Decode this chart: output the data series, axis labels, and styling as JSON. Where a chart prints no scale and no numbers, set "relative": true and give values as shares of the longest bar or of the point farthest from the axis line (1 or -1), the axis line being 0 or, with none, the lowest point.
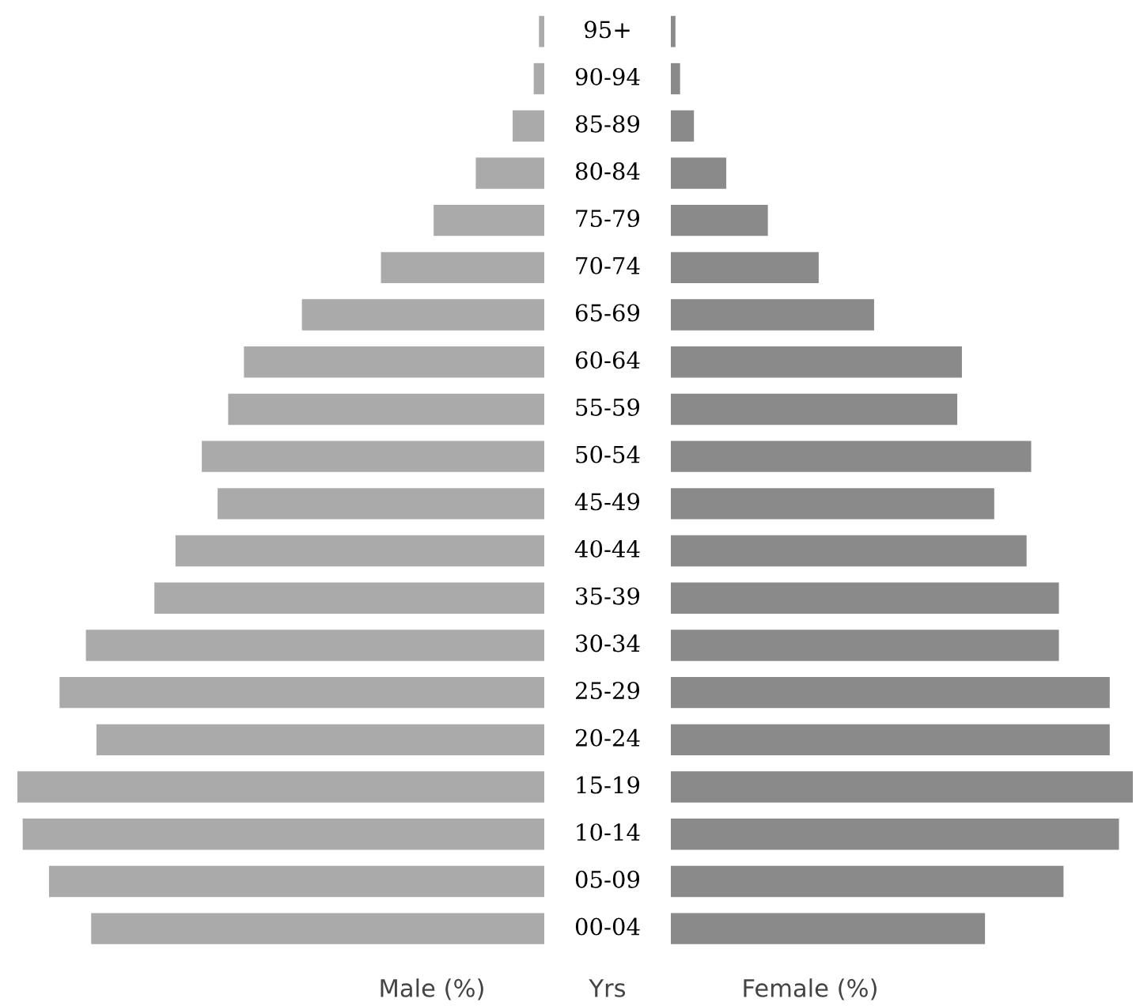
{
  "chart_data": [
    {
      "type": "bar",
      "orientation": "horizontal",
      "relative": true,
      "categories": [
        "95+",
        "90-94",
        "85-89",
        "80-84",
        "75-79",
        "70-74",
        "65-69",
        "60-64",
        "55-59",
        "50-54",
        "45-49",
        "40-44",
        "35-39",
        "30-34",
        "25-29",
        "20-24",
        "15-19",
        "10-14",
        "05-09",
        "00-04"
      ],
      "series": [
        {
          "color": "#aaaaaa",
          "values": [
            -0.01,
            -0.02,
            -0.06,
            -0.13,
            -0.21,
            -0.31,
            -0.46,
            -0.57,
            -0.6,
            -0.65,
            -0.62,
            -0.7,
            -0.74,
            -0.87,
            -0.92,
            -0.85,
            -1,
            -0.99,
            -0.94,
            -0.86
          ]
        }
      ],
      "xlabel": "Male (%)",
      "annotations": [
        "Yrs"
      ]
    },
    {
      "type": "bar",
      "orientation": "horizontal",
      "relative": true,
      "categories": [
        null,
        null,
        null,
        null,
        null,
        null,
        null,
        null,
        null,
        null,
        null,
        null,
        null,
        null,
        null,
        null,
        null,
        null,
        null,
        null
      ],
      "series": [
        {
          "color": "#8a8a8a",
          "values": [
            0.01,
            0.02,
            0.05,
            0.12,
            0.21,
            0.32,
            0.44,
            0.63,
            0.62,
            0.78,
            0.7,
            0.77,
            0.84,
            0.84,
            0.95,
            0.95,
            1,
            0.97,
            0.85,
            0.68
          ]
        }
      ],
      "xlabel": "Female (%)"
    }
  ]
}
